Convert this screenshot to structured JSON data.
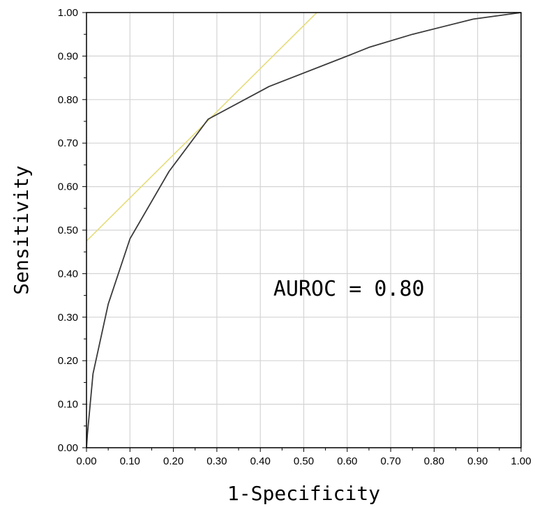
{
  "chart_data": {
    "type": "line",
    "title": "",
    "xlabel": "1-Specificity",
    "ylabel": "Sensitivity",
    "xlim": [
      0,
      1
    ],
    "ylim": [
      0,
      1
    ],
    "grid": true,
    "x_ticks": [
      "0.00",
      "0.10",
      "0.20",
      "0.30",
      "0.40",
      "0.50",
      "0.60",
      "0.70",
      "0.80",
      "0.90",
      "1.00"
    ],
    "y_ticks": [
      "0.00",
      "0.10",
      "0.20",
      "0.30",
      "0.40",
      "0.50",
      "0.60",
      "0.70",
      "0.80",
      "0.90",
      "1.00"
    ],
    "series": [
      {
        "color": "#3a3a3a",
        "x": [
          0,
          0.002,
          0.015,
          0.05,
          0.1,
          0.19,
          0.28,
          0.42,
          0.6,
          0.65,
          0.75,
          0.89,
          1.0
        ],
        "y": [
          0,
          0.03,
          0.17,
          0.33,
          0.48,
          0.635,
          0.755,
          0.83,
          0.9,
          0.92,
          0.95,
          0.985,
          1.0
        ]
      },
      {
        "color": "#e6dc7a",
        "x": [
          0,
          0.53
        ],
        "y": [
          0.475,
          1.0
        ]
      }
    ],
    "annotation": {
      "text": "AUROC = 0.80",
      "x": 0.43,
      "y": 0.365
    }
  }
}
